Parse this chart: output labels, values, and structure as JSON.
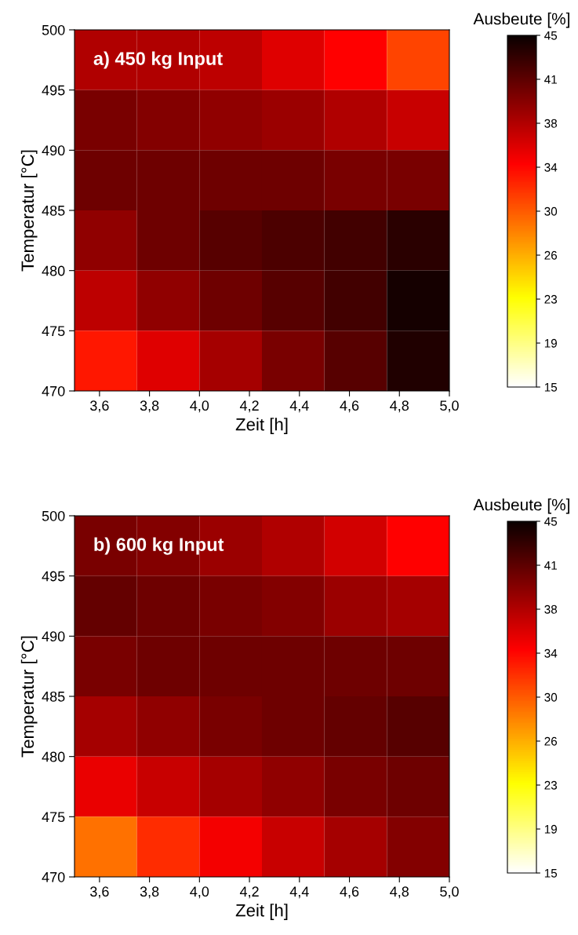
{
  "chart_data": [
    {
      "type": "heatmap",
      "title": "a) 450 kg Input",
      "xlabel": "Zeit [h]",
      "ylabel": "Temperatur [°C]",
      "clabel": "Ausbeute [%]",
      "x": [
        3.625,
        3.875,
        4.125,
        4.375,
        4.625,
        4.875
      ],
      "y": [
        497.5,
        492.5,
        487.5,
        482.5,
        477.5,
        472.5
      ],
      "cells": [
        [
          37.5,
          37.5,
          37,
          35.5,
          34,
          31
        ],
        [
          40,
          39.5,
          39,
          38.5,
          37.5,
          36.5
        ],
        [
          40.5,
          40.5,
          40.5,
          40.5,
          40,
          40
        ],
        [
          39,
          40.5,
          41.5,
          42,
          42.5,
          43.5
        ],
        [
          37,
          39,
          40.5,
          41.5,
          42.5,
          44.5
        ],
        [
          33,
          35.5,
          38,
          40,
          41.5,
          44
        ]
      ],
      "xlim": [
        3.5,
        5.0
      ],
      "ylim": [
        470,
        500
      ],
      "xticks": [
        {
          "value": 3.6,
          "label": "3,6"
        },
        {
          "value": 3.8,
          "label": "3,8"
        },
        {
          "value": 4.0,
          "label": "4,0"
        },
        {
          "value": 4.2,
          "label": "4,2"
        },
        {
          "value": 4.4,
          "label": "4,4"
        },
        {
          "value": 4.6,
          "label": "4,6"
        },
        {
          "value": 4.8,
          "label": "4,8"
        },
        {
          "value": 5.0,
          "label": "5,0"
        }
      ],
      "yticks": [
        470,
        475,
        480,
        485,
        490,
        495,
        500
      ],
      "clim": [
        15,
        45
      ],
      "cticks": [
        15,
        {
          "value": 18.75,
          "label": "19"
        },
        {
          "value": 22.5,
          "label": "23"
        },
        {
          "value": 26.25,
          "label": "26"
        },
        30,
        {
          "value": 33.75,
          "label": "34"
        },
        {
          "value": 37.5,
          "label": "38"
        },
        {
          "value": 41.25,
          "label": "41"
        },
        45
      ]
    },
    {
      "type": "heatmap",
      "title": "b) 600 kg Input",
      "xlabel": "Zeit [h]",
      "ylabel": "Temperatur [°C]",
      "clabel": "Ausbeute [%]",
      "x": [
        3.625,
        3.875,
        4.125,
        4.375,
        4.625,
        4.875
      ],
      "y": [
        497.5,
        492.5,
        487.5,
        482.5,
        477.5,
        472.5
      ],
      "cells": [
        [
          40,
          39.5,
          38.5,
          37.5,
          36,
          34
        ],
        [
          41,
          40.5,
          40,
          39.5,
          38.5,
          38
        ],
        [
          40,
          40.5,
          40.5,
          40.5,
          40.5,
          40.5
        ],
        [
          38,
          39,
          40,
          40.5,
          41,
          41.5
        ],
        [
          35,
          36.5,
          38,
          39,
          40,
          40.5
        ],
        [
          29,
          32,
          34.5,
          36.5,
          38,
          39.5
        ]
      ],
      "xlim": [
        3.5,
        5.0
      ],
      "ylim": [
        470,
        500
      ],
      "xticks": [
        {
          "value": 3.6,
          "label": "3,6"
        },
        {
          "value": 3.8,
          "label": "3,8"
        },
        {
          "value": 4.0,
          "label": "4,0"
        },
        {
          "value": 4.2,
          "label": "4,2"
        },
        {
          "value": 4.4,
          "label": "4,4"
        },
        {
          "value": 4.6,
          "label": "4,6"
        },
        {
          "value": 4.8,
          "label": "4,8"
        },
        {
          "value": 5.0,
          "label": "5,0"
        }
      ],
      "yticks": [
        470,
        475,
        480,
        485,
        490,
        495,
        500
      ],
      "clim": [
        15,
        45
      ],
      "cticks": [
        15,
        {
          "value": 18.75,
          "label": "19"
        },
        {
          "value": 22.5,
          "label": "23"
        },
        {
          "value": 26.25,
          "label": "26"
        },
        30,
        {
          "value": 33.75,
          "label": "34"
        },
        {
          "value": 37.5,
          "label": "38"
        },
        {
          "value": 41.25,
          "label": "41"
        },
        45
      ]
    }
  ]
}
